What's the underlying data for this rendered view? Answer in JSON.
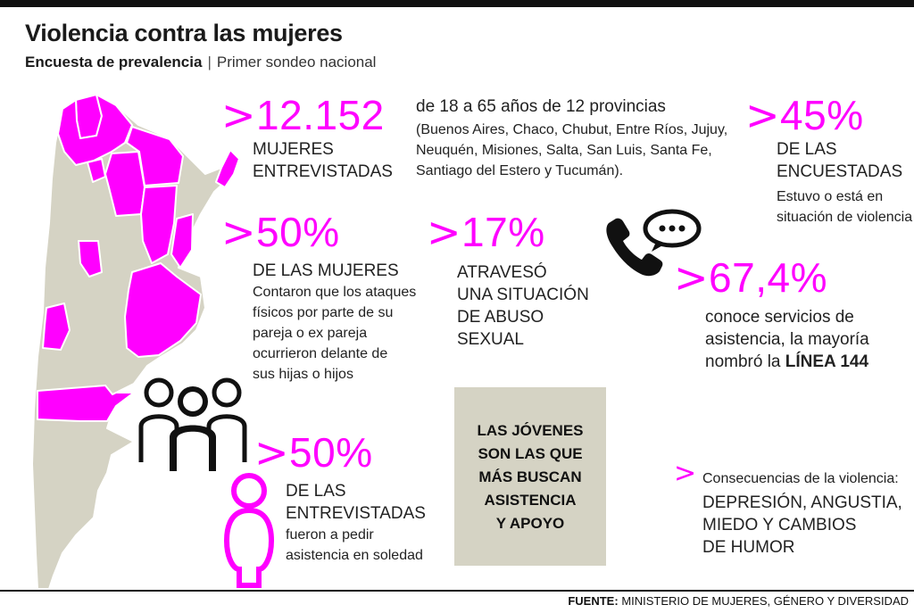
{
  "header": {
    "title": "Violencia contra las mujeres",
    "subtitle_bold": "Encuesta de prevalencia",
    "subtitle_sep": "|",
    "subtitle_rest": "Primer sondeo nacional"
  },
  "chevron": ">",
  "stat_surveyed": {
    "number": "12.152",
    "label_line1": "MUJERES",
    "label_line2": "ENTREVISTADAS",
    "detail_line1": "de 18 a 65 años de 12 provincias",
    "detail_line2": "(Buenos Aires, Chaco, Chubut, Entre Ríos, Jujuy,",
    "detail_line3": "Neuquén, Misiones, Salta, San Luis, Santa Fe,",
    "detail_line4": "Santiago del Estero y Tucumán)."
  },
  "stat_violence": {
    "number": "45%",
    "label_line1": "DE LAS",
    "label_line2": "ENCUESTADAS",
    "detail_line1": "Estuvo o está en",
    "detail_line2": "situación de violencia"
  },
  "stat_children": {
    "number": "50%",
    "label": "DE LAS MUJERES",
    "detail_line1": "Contaron que los ataques",
    "detail_line2": "físicos por parte de su",
    "detail_line3": "pareja o ex pareja",
    "detail_line4": "ocurrieron delante de",
    "detail_line5": "sus hijas o hijos"
  },
  "stat_abuse": {
    "number": "17%",
    "line1": "ATRAVESÓ",
    "line2": "UNA SITUACIÓN",
    "line3": "DE ABUSO",
    "line4": "SEXUAL"
  },
  "stat_services": {
    "number": "67,4%",
    "line1": "conoce servicios de",
    "line2": "asistencia, la mayoría",
    "line3_prefix": "nombró la",
    "line3_bold": "LÍNEA 144"
  },
  "stat_alone": {
    "number": "50%",
    "line1": "DE LAS",
    "line2": "ENTREVISTADAS",
    "line3": "fueron a pedir",
    "line4": "asistencia en soledad"
  },
  "highlight_box": {
    "line1": "LAS JÓVENES",
    "line2": "SON LAS QUE",
    "line3": "MÁS BUSCAN",
    "line4": "ASISTENCIA",
    "line5": "Y APOYO"
  },
  "consequences": {
    "title": "Consecuencias de la violencia:",
    "line1": "DEPRESIÓN, ANGUSTIA,",
    "line2": "MIEDO Y CAMBIOS",
    "line3": "DE HUMOR"
  },
  "footer": {
    "label": "FUENTE:",
    "source": "MINISTERIO DE MUJERES, GÉNERO Y DIVERSIDAD"
  },
  "colors": {
    "accent": "#ff00ff",
    "map_base": "#d5d3c4",
    "box_bg": "#d5d3c4",
    "text": "#1a1a1a"
  },
  "icons": [
    "argentina-map",
    "phone-chat-icon",
    "group-people-icon",
    "woman-icon"
  ]
}
